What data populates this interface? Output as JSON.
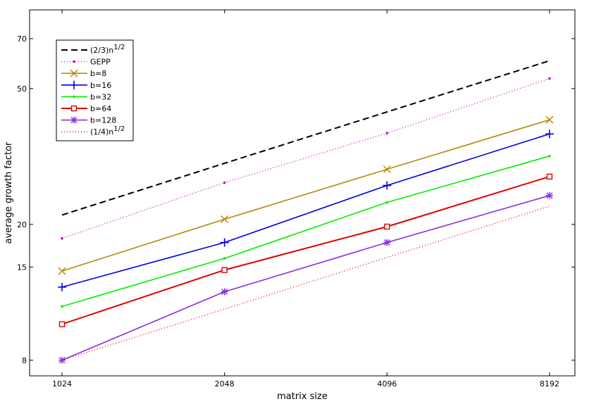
{
  "chart_data": {
    "type": "line",
    "title": "",
    "xlabel": "matrix size",
    "ylabel": "average growth factor",
    "x_scale": "log2",
    "y_scale": "log",
    "x_categories": [
      "1024",
      "2048",
      "4096",
      "8192"
    ],
    "x": [
      1024,
      2048,
      4096,
      8192
    ],
    "y_ticks": [
      8,
      15,
      20,
      50,
      70
    ],
    "y_tick_labels": [
      "8",
      "15",
      "20",
      "50",
      "70"
    ],
    "xlim": [
      1024,
      8192
    ],
    "ylim": [
      7.2,
      85
    ],
    "grid": false,
    "legend_position": "top-left",
    "series": [
      {
        "key": "s23",
        "name": "(2/3)n",
        "sup": "1/2",
        "color": "#000000",
        "dash": "9,5",
        "width": 2,
        "marker": "none",
        "values": [
          21.3,
          30.2,
          42.7,
          60.3
        ]
      },
      {
        "key": "gepp",
        "name": "GEPP",
        "color": "#cc00cc",
        "dash": "1,3",
        "width": 1.3,
        "marker": "dot",
        "values": [
          18.2,
          26.5,
          37.0,
          53.5
        ]
      },
      {
        "key": "b8",
        "name": "b=8",
        "color": "#b8860b",
        "dash": "",
        "width": 1.6,
        "marker": "x",
        "values": [
          14.6,
          20.7,
          29.0,
          40.5
        ]
      },
      {
        "key": "b16",
        "name": "b=16",
        "color": "#0000dd",
        "dash": "",
        "width": 1.6,
        "marker": "plus",
        "values": [
          13.1,
          17.7,
          26.0,
          36.8
        ]
      },
      {
        "key": "b32",
        "name": "b=32",
        "color": "#00ee00",
        "dash": "",
        "width": 1.6,
        "marker": "dot",
        "values": [
          11.5,
          15.9,
          23.2,
          31.7
        ]
      },
      {
        "key": "b64",
        "name": "b=64",
        "color": "#dd0000",
        "dash": "",
        "width": 2,
        "marker": "square",
        "values": [
          10.2,
          14.7,
          19.7,
          27.6
        ]
      },
      {
        "key": "b128",
        "name": "b=128",
        "color": "#8a2be2",
        "dash": "",
        "width": 1.6,
        "marker": "star",
        "values": [
          8.0,
          12.7,
          17.7,
          24.3
        ]
      },
      {
        "key": "s14",
        "name": "(1/4)n",
        "sup": "1/2",
        "color": "#dd0000",
        "dash": "1,3",
        "width": 1.3,
        "marker": "none",
        "values": [
          8.0,
          11.3,
          16.0,
          22.6
        ]
      }
    ]
  }
}
